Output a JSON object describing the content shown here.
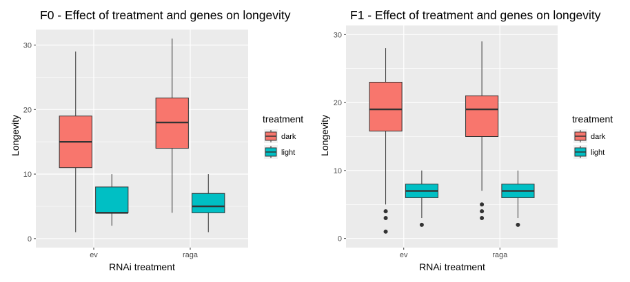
{
  "chart_data": [
    {
      "type": "boxplot",
      "title": "F0 - Effect of treatment and genes on longevity",
      "xlabel": "RNAi treatment",
      "ylabel": "Longevity",
      "categories": [
        "ev",
        "raga"
      ],
      "ylim": [
        0,
        31
      ],
      "yticks": [
        0,
        10,
        20,
        30
      ],
      "grid": true,
      "legend": {
        "title": "treatment",
        "position": "right",
        "entries": [
          "dark",
          "light"
        ]
      },
      "series": [
        {
          "name": "dark",
          "color": "#F8766D",
          "boxes": [
            {
              "category": "ev",
              "min": 1,
              "q1": 11,
              "median": 15,
              "q3": 19,
              "max": 29,
              "outliers": []
            },
            {
              "category": "raga",
              "min": 4,
              "q1": 14,
              "median": 18,
              "q3": 21.8,
              "max": 31,
              "outliers": []
            }
          ]
        },
        {
          "name": "light",
          "color": "#00BFC4",
          "boxes": [
            {
              "category": "ev",
              "min": 2,
              "q1": 4,
              "median": 4,
              "q3": 8,
              "max": 10,
              "outliers": []
            },
            {
              "category": "raga",
              "min": 1,
              "q1": 4,
              "median": 5,
              "q3": 7,
              "max": 10,
              "outliers": []
            }
          ]
        }
      ]
    },
    {
      "type": "boxplot",
      "title": "F1 - Effect of treatment and genes on longevity",
      "xlabel": "RNAi treatment",
      "ylabel": "Longevity",
      "categories": [
        "ev",
        "raga"
      ],
      "ylim": [
        0,
        30
      ],
      "yticks": [
        0,
        10,
        20,
        30
      ],
      "grid": true,
      "legend": {
        "title": "treatment",
        "position": "right",
        "entries": [
          "dark",
          "light"
        ]
      },
      "series": [
        {
          "name": "dark",
          "color": "#F8766D",
          "boxes": [
            {
              "category": "ev",
              "min": 5,
              "q1": 15.8,
              "median": 19,
              "q3": 23,
              "max": 28,
              "outliers": [
                1,
                3,
                4
              ]
            },
            {
              "category": "raga",
              "min": 7,
              "q1": 15,
              "median": 19,
              "q3": 21,
              "max": 29,
              "outliers": [
                3,
                4,
                5
              ]
            }
          ]
        },
        {
          "name": "light",
          "color": "#00BFC4",
          "boxes": [
            {
              "category": "ev",
              "min": 3,
              "q1": 6,
              "median": 7,
              "q3": 8,
              "max": 10,
              "outliers": [
                2
              ]
            },
            {
              "category": "raga",
              "min": 3,
              "q1": 6,
              "median": 7,
              "q3": 8,
              "max": 10,
              "outliers": [
                2
              ]
            }
          ]
        }
      ]
    }
  ]
}
